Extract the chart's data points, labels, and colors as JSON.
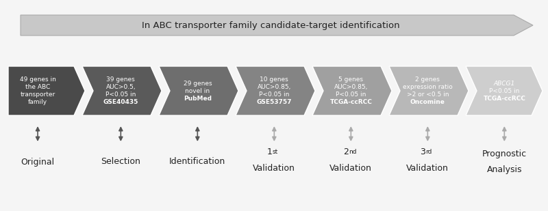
{
  "title_arrow_text": "In ABC transporter family candidate-target identification",
  "chevrons": [
    {
      "label_lines": [
        "49 genes in",
        "the ABC",
        "transporter",
        "family"
      ],
      "bold_line": null,
      "color": "#4a4a4a",
      "text_color": "#ffffff",
      "italic_first": false
    },
    {
      "label_lines": [
        "39 genes",
        "AUC>0.5,",
        "P<0.05 in"
      ],
      "bold_line": "GSE40435",
      "color": "#5a5a5a",
      "text_color": "#ffffff",
      "italic_first": false
    },
    {
      "label_lines": [
        "29 genes",
        "novel in"
      ],
      "bold_line": "PubMed",
      "color": "#6e6e6e",
      "text_color": "#ffffff",
      "italic_first": false
    },
    {
      "label_lines": [
        "10 genes",
        "AUC>0.85,",
        "P<0.05 in"
      ],
      "bold_line": "GSE53757",
      "color": "#848484",
      "text_color": "#ffffff",
      "italic_first": false
    },
    {
      "label_lines": [
        "5 genes",
        "AUC>0.85,",
        "P<0.05 in"
      ],
      "bold_line": "TCGA-ccRCC",
      "color": "#a0a0a0",
      "text_color": "#ffffff",
      "italic_first": false
    },
    {
      "label_lines": [
        "2 genes",
        "expression ratio",
        ">2 or <0.5 in"
      ],
      "bold_line": "Oncomine",
      "color": "#b8b8b8",
      "text_color": "#ffffff",
      "italic_first": false
    },
    {
      "label_lines": [
        "ABCG1",
        "P<0.05 in"
      ],
      "bold_line": "TCGA-ccRCC",
      "color": "#cecece",
      "text_color": "#ffffff",
      "italic_first": true
    }
  ],
  "bottom_labels": [
    [
      "Original"
    ],
    [
      "Selection"
    ],
    [
      "Identification"
    ],
    [
      "1",
      "st",
      "Validation"
    ],
    [
      "2",
      "nd",
      "Validation"
    ],
    [
      "3",
      "rd",
      "Validation"
    ],
    [
      "Prognostic",
      "Analysis"
    ]
  ],
  "arrow_colors_filled": [
    true,
    true,
    true,
    false,
    false,
    false,
    false
  ],
  "bg_color": "#f5f5f5"
}
